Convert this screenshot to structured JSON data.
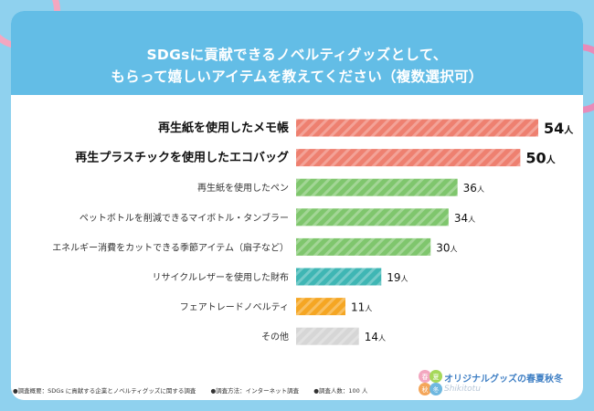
{
  "header": {
    "title_line1": "SDGsに貢献できるノベルティグッズとして、",
    "title_line2": "もらって嬉しいアイテムを教えてください（複数選択可）"
  },
  "chart_data": {
    "type": "bar",
    "orientation": "horizontal",
    "unit": "人",
    "xlim": [
      0,
      54
    ],
    "categories": [
      "再生紙を使用したメモ帳",
      "再生プラスチックを使用したエコバッグ",
      "再生紙を使用したペン",
      "ペットボトルを削減できるマイボトル・タンブラー",
      "エネルギー消費をカットできる季節アイテム（扇子など）",
      "リサイクルレザーを使用した財布",
      "フェアトレードノベルティ",
      "その他"
    ],
    "values": [
      54,
      50,
      36,
      34,
      30,
      19,
      11,
      14
    ],
    "emphasized": [
      true,
      true,
      false,
      false,
      false,
      false,
      false,
      false
    ],
    "colors": [
      "#ee8070",
      "#ee8070",
      "#7fc66d",
      "#7fc66d",
      "#7fc66d",
      "#3fb6b4",
      "#f5a623",
      "#d6d6d6"
    ]
  },
  "footer": {
    "note1": "●調査概要：SDGs に貢献する企業とノベルティグッズに関する調査",
    "note2": "●調査方法：インターネット調査",
    "note3": "●調査人数：100 人"
  },
  "brand": {
    "name": "オリジナルグッズの春夏秋冬",
    "sub": "Shikitotu",
    "badge": [
      "春",
      "夏",
      "秋",
      "冬"
    ]
  },
  "decor_colors": [
    "#f3a7c0",
    "#a6d85a",
    "#f6d23a",
    "#f4a65a",
    "#6fb8e0"
  ]
}
